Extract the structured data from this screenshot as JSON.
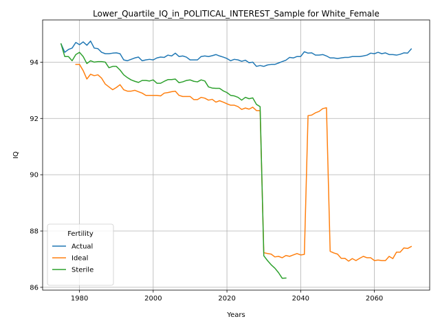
{
  "chart_data": {
    "type": "line",
    "title": "Lower_Quartile_IQ_in_POLITICAL_INTEREST_Sample for White_Female",
    "xlabel": "Years",
    "ylabel": "IQ",
    "xlim": [
      1970,
      2075
    ],
    "ylim": [
      85.9,
      95.5
    ],
    "xticks": [
      1980,
      2000,
      2020,
      2040,
      2060
    ],
    "yticks": [
      86,
      88,
      90,
      92,
      94
    ],
    "grid": true,
    "legend": {
      "title": "Fertility",
      "placement": "lower-left"
    },
    "series": [
      {
        "name": "Actual",
        "color": "#1f77b4",
        "x": [
          1975,
          1976,
          1977,
          1978,
          1979,
          1980,
          1981,
          1982,
          1983,
          1984,
          1985,
          1986,
          1987,
          1988,
          1989,
          1990,
          1991,
          1992,
          1993,
          1994,
          1995,
          1996,
          1997,
          1998,
          1999,
          2000,
          2001,
          2002,
          2003,
          2004,
          2005,
          2006,
          2007,
          2008,
          2009,
          2010,
          2011,
          2012,
          2013,
          2014,
          2015,
          2016,
          2017,
          2018,
          2019,
          2020,
          2021,
          2022,
          2023,
          2024,
          2025,
          2026,
          2027,
          2028,
          2029,
          2030,
          2031,
          2032,
          2033,
          2034,
          2035,
          2036,
          2037,
          2038,
          2039,
          2040,
          2041,
          2042,
          2043,
          2044,
          2045,
          2046,
          2047,
          2048,
          2049,
          2050,
          2051,
          2052,
          2053,
          2054,
          2055,
          2056,
          2057,
          2058,
          2059,
          2060,
          2061,
          2062,
          2063,
          2064,
          2065,
          2066,
          2067,
          2068,
          2069,
          2070
        ],
        "values": [
          94.65,
          94.35,
          94.45,
          94.5,
          94.7,
          94.62,
          94.72,
          94.6,
          94.75,
          94.5,
          94.48,
          94.35,
          94.3,
          94.3,
          94.32,
          94.33,
          94.3,
          94.08,
          94.05,
          94.1,
          94.15,
          94.18,
          94.05,
          94.08,
          94.1,
          94.08,
          94.15,
          94.18,
          94.17,
          94.25,
          94.22,
          94.32,
          94.2,
          94.22,
          94.18,
          94.08,
          94.08,
          94.08,
          94.2,
          94.22,
          94.2,
          94.23,
          94.27,
          94.22,
          94.18,
          94.13,
          94.05,
          94.1,
          94.08,
          94.03,
          94.07,
          93.98,
          94.0,
          93.85,
          93.88,
          93.85,
          93.9,
          93.92,
          93.92,
          93.97,
          94.02,
          94.07,
          94.17,
          94.15,
          94.2,
          94.2,
          94.37,
          94.32,
          94.33,
          94.25,
          94.25,
          94.27,
          94.22,
          94.15,
          94.15,
          94.13,
          94.15,
          94.17,
          94.17,
          94.2,
          94.2,
          94.2,
          94.22,
          94.25,
          94.32,
          94.3,
          94.35,
          94.3,
          94.33,
          94.27,
          94.27,
          94.25,
          94.28,
          94.33,
          94.32,
          94.47
        ]
      },
      {
        "name": "Ideal",
        "color": "#ff7f0e",
        "x": [
          1979,
          1980,
          1981,
          1982,
          1983,
          1984,
          1985,
          1986,
          1987,
          1988,
          1989,
          1990,
          1991,
          1992,
          1993,
          1994,
          1995,
          1996,
          1997,
          1998,
          1999,
          2000,
          2001,
          2002,
          2003,
          2004,
          2005,
          2006,
          2007,
          2008,
          2009,
          2010,
          2011,
          2012,
          2013,
          2014,
          2015,
          2016,
          2017,
          2018,
          2019,
          2020,
          2021,
          2022,
          2023,
          2024,
          2025,
          2026,
          2027,
          2028,
          2029,
          2030,
          2031,
          2032,
          2033,
          2034,
          2035,
          2036,
          2037,
          2038,
          2039,
          2040,
          2041,
          2042,
          2043,
          2044,
          2045,
          2046,
          2047,
          2048,
          2049,
          2050,
          2051,
          2052,
          2053,
          2054,
          2055,
          2056,
          2057,
          2058,
          2059,
          2060,
          2061,
          2062,
          2063,
          2064,
          2065,
          2066,
          2067,
          2068,
          2069,
          2070
        ],
        "values": [
          93.92,
          93.92,
          93.7,
          93.4,
          93.57,
          93.52,
          93.55,
          93.43,
          93.22,
          93.12,
          93.02,
          93.1,
          93.2,
          93.02,
          92.97,
          92.97,
          93.0,
          92.95,
          92.9,
          92.82,
          92.82,
          92.82,
          92.82,
          92.8,
          92.9,
          92.92,
          92.95,
          92.97,
          92.82,
          92.78,
          92.78,
          92.78,
          92.67,
          92.67,
          92.75,
          92.72,
          92.65,
          92.68,
          92.58,
          92.63,
          92.58,
          92.52,
          92.47,
          92.47,
          92.42,
          92.32,
          92.37,
          92.33,
          92.4,
          92.28,
          92.28,
          87.23,
          87.2,
          87.18,
          87.08,
          87.1,
          87.05,
          87.13,
          87.1,
          87.15,
          87.2,
          87.15,
          87.17,
          92.1,
          92.12,
          92.2,
          92.25,
          92.35,
          92.38,
          87.28,
          87.22,
          87.18,
          87.03,
          87.03,
          86.93,
          87.02,
          86.95,
          87.03,
          87.1,
          87.05,
          87.05,
          86.95,
          86.97,
          86.95,
          86.95,
          87.1,
          87.02,
          87.25,
          87.25,
          87.4,
          87.38,
          87.45
        ]
      },
      {
        "name": "Sterile",
        "color": "#2ca02c",
        "x": [
          1975,
          1976,
          1977,
          1978,
          1979,
          1980,
          1981,
          1982,
          1983,
          1984,
          1985,
          1986,
          1987,
          1988,
          1989,
          1990,
          1991,
          1992,
          1993,
          1994,
          1995,
          1996,
          1997,
          1998,
          1999,
          2000,
          2001,
          2002,
          2003,
          2004,
          2005,
          2006,
          2007,
          2008,
          2009,
          2010,
          2011,
          2012,
          2013,
          2014,
          2015,
          2016,
          2017,
          2018,
          2019,
          2020,
          2021,
          2022,
          2023,
          2024,
          2025,
          2026,
          2027,
          2028,
          2029,
          2030,
          2031,
          2032,
          2033,
          2034,
          2035,
          2036
        ],
        "values": [
          94.65,
          94.2,
          94.2,
          94.05,
          94.27,
          94.35,
          94.2,
          93.95,
          94.05,
          94.0,
          94.02,
          94.02,
          94.0,
          93.8,
          93.85,
          93.85,
          93.72,
          93.55,
          93.45,
          93.37,
          93.32,
          93.28,
          93.35,
          93.35,
          93.33,
          93.37,
          93.25,
          93.25,
          93.32,
          93.38,
          93.38,
          93.4,
          93.27,
          93.3,
          93.35,
          93.37,
          93.32,
          93.3,
          93.37,
          93.33,
          93.12,
          93.08,
          93.07,
          93.07,
          92.98,
          92.92,
          92.82,
          92.8,
          92.75,
          92.65,
          92.75,
          92.7,
          92.73,
          92.5,
          92.42,
          87.12,
          86.95,
          86.8,
          86.68,
          86.52,
          86.32,
          86.33
        ]
      }
    ]
  }
}
